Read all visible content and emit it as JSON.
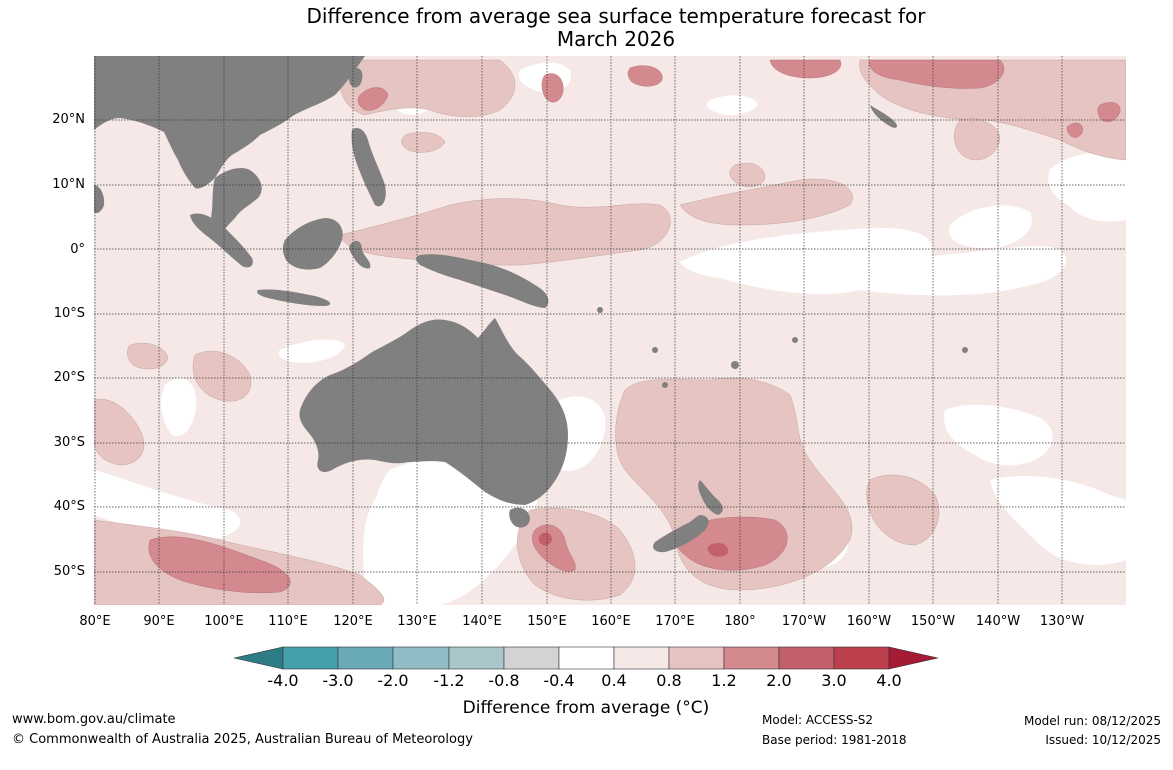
{
  "title": {
    "line1": "Difference from average sea surface temperature forecast for",
    "line2": "March 2026"
  },
  "latitude_labels": [
    "20°N",
    "10°N",
    "0°",
    "10°S",
    "20°S",
    "30°S",
    "40°S",
    "50°S"
  ],
  "longitude_labels": [
    "80°E",
    "90°E",
    "100°E",
    "110°E",
    "120°E",
    "130°E",
    "140°E",
    "150°E",
    "160°E",
    "170°E",
    "180°",
    "170°W",
    "160°W",
    "150°W",
    "140°W",
    "130°W"
  ],
  "colorbar": {
    "title": "Difference from average (°C)",
    "tick_labels": [
      "-4.0",
      "-3.0",
      "-2.0",
      "-1.2",
      "-0.8",
      "-0.4",
      "0.4",
      "0.8",
      "1.2",
      "2.0",
      "3.0",
      "4.0"
    ],
    "colors": [
      "#2e7c85",
      "#469fac",
      "#6aaab8",
      "#8fbcc5",
      "#a9c7cb",
      "#d3d3d3",
      "#ffffff",
      "#f5e8e6",
      "#e6c4c1",
      "#d4898f",
      "#c4606b",
      "#bc3f4d",
      "#a51a35"
    ]
  },
  "map_colors": {
    "land": "#808080",
    "ocean_base": "#f5e8e6",
    "neutral": "#ffffff",
    "warm_1": "#e6c4c1",
    "warm_2": "#d4898f",
    "warm_3": "#c4606b",
    "grid": "#333333"
  },
  "footer": {
    "website": "www.bom.gov.au/climate",
    "copyright": "© Commonwealth of Australia 2025, Australian Bureau of Meteorology",
    "model": "Model: ACCESS-S2",
    "base_period": "Base period: 1981-2018",
    "model_run": "Model run: 08/12/2025",
    "issued": "Issued: 10/12/2025"
  }
}
